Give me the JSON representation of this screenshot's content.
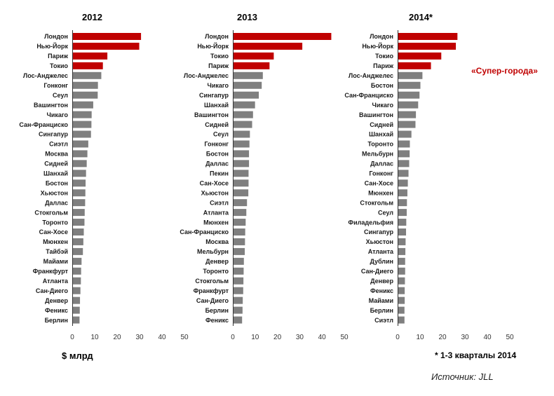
{
  "colors": {
    "super_city": "#c00000",
    "other": "#7f7f7f"
  },
  "notes": {
    "unit": "$ млрд",
    "footnote": "* 1-3 кварталы 2014",
    "super_cities": "«Супер-города»",
    "source": "Источник: JLL"
  },
  "chart_data": [
    {
      "type": "bar",
      "orientation": "horizontal",
      "title": "2012",
      "xlim": [
        0,
        50
      ],
      "xticks": [
        0,
        10,
        20,
        30,
        40,
        50
      ],
      "grid": false,
      "categories": [
        "Лондон",
        "Нью-Йорк",
        "Париж",
        "Токио",
        "Лос-Анджелес",
        "Гонконг",
        "Сеул",
        "Вашингтон",
        "Чикаго",
        "Сан-Франциско",
        "Сингапур",
        "Сиэтл",
        "Москва",
        "Сидней",
        "Шанхай",
        "Бостон",
        "Хьюстон",
        "Даллас",
        "Стокгольм",
        "Торонто",
        "Сан-Хосе",
        "Мюнхен",
        "Тайбэй",
        "Майами",
        "Франкфурт",
        "Атланта",
        "Сан-Диего",
        "Денвер",
        "Феникс",
        "Берлин"
      ],
      "values": [
        30.5,
        29.7,
        15.5,
        13.5,
        12.8,
        11.3,
        11.2,
        9.2,
        8.5,
        8.4,
        8.2,
        7.0,
        6.6,
        6.3,
        6.0,
        5.8,
        5.7,
        5.6,
        5.4,
        5.3,
        5.0,
        4.8,
        4.6,
        4.0,
        3.8,
        3.7,
        3.5,
        3.3,
        3.2,
        3.1
      ],
      "highlighted": [
        true,
        true,
        true,
        true,
        false,
        false,
        false,
        false,
        false,
        false,
        false,
        false,
        false,
        false,
        false,
        false,
        false,
        false,
        false,
        false,
        false,
        false,
        false,
        false,
        false,
        false,
        false,
        false,
        false,
        false
      ]
    },
    {
      "type": "bar",
      "orientation": "horizontal",
      "title": "2013",
      "xlim": [
        0,
        50
      ],
      "xticks": [
        0,
        10,
        20,
        30,
        40,
        50
      ],
      "grid": false,
      "categories": [
        "Лондон",
        "Нью-Йорк",
        "Токио",
        "Париж",
        "Лос-Анджелес",
        "Чикаго",
        "Сингапур",
        "Шанхай",
        "Вашингтон",
        "Сидней",
        "Сеул",
        "Гонконг",
        "Бостон",
        "Даллас",
        "Пекин",
        "Сан-Хосе",
        "Хьюстон",
        "Сиэтл",
        "Атланта",
        "Мюнхен",
        "Сан-Франциско",
        "Москва",
        "Мельбурн",
        "Денвер",
        "Торонто",
        "Стокгольм",
        "Франкфурт",
        "Сан-Диего",
        "Берлин",
        "Феникс"
      ],
      "values": [
        44.0,
        31.0,
        18.2,
        16.3,
        13.3,
        12.8,
        11.5,
        9.8,
        8.9,
        8.5,
        7.5,
        7.3,
        7.1,
        7.1,
        6.9,
        6.9,
        6.8,
        6.2,
        5.9,
        5.6,
        5.4,
        5.3,
        5.2,
        4.8,
        4.7,
        4.6,
        4.5,
        4.3,
        4.2,
        4.0
      ],
      "highlighted": [
        true,
        true,
        true,
        true,
        false,
        false,
        false,
        false,
        false,
        false,
        false,
        false,
        false,
        false,
        false,
        false,
        false,
        false,
        false,
        false,
        false,
        false,
        false,
        false,
        false,
        false,
        false,
        false,
        false,
        false
      ]
    },
    {
      "type": "bar",
      "orientation": "horizontal",
      "title": "2014*",
      "xlim": [
        0,
        50
      ],
      "xticks": [
        0,
        10,
        20,
        30,
        40,
        50
      ],
      "grid": false,
      "categories": [
        "Лондон",
        "Нью-Йорк",
        "Токио",
        "Париж",
        "Лос-Анджелес",
        "Бостон",
        "Сан-Франциско",
        "Чикаго",
        "Вашингтон",
        "Сидней",
        "Шанхай",
        "Торонто",
        "Мельбурн",
        "Даллас",
        "Гонконг",
        "Сан-Хосе",
        "Мюнхен",
        "Стокгольм",
        "Сеул",
        "Филадельфия",
        "Сингапур",
        "Хьюстон",
        "Атланта",
        "Дублин",
        "Сан-Диего",
        "Денвер",
        "Феникс",
        "Майами",
        "Берлин",
        "Сиэтл"
      ],
      "values": [
        26.5,
        25.8,
        19.3,
        14.7,
        10.9,
        10.0,
        9.6,
        9.0,
        8.0,
        7.8,
        6.0,
        5.3,
        5.2,
        5.0,
        4.7,
        4.4,
        4.2,
        4.0,
        3.9,
        3.7,
        3.6,
        3.4,
        3.3,
        3.2,
        3.2,
        3.1,
        3.0,
        3.0,
        2.9,
        2.9
      ],
      "highlighted": [
        true,
        true,
        true,
        true,
        false,
        false,
        false,
        false,
        false,
        false,
        false,
        false,
        false,
        false,
        false,
        false,
        false,
        false,
        false,
        false,
        false,
        false,
        false,
        false,
        false,
        false,
        false,
        false,
        false,
        false
      ]
    }
  ]
}
